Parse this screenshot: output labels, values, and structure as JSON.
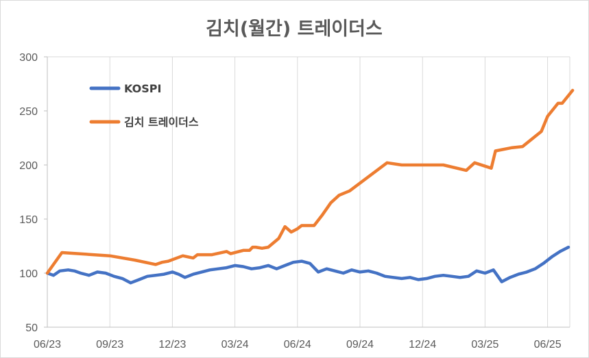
{
  "chart_data": {
    "type": "line",
    "title": "김치(월간) 트레이더스",
    "xlabel": "",
    "ylabel": "",
    "ylim": [
      50,
      300
    ],
    "yticks": [
      50,
      100,
      150,
      200,
      250,
      300
    ],
    "xticks": [
      "06/23",
      "09/23",
      "12/23",
      "03/24",
      "06/24",
      "09/24",
      "12/24",
      "03/25",
      "06/25"
    ],
    "xlim": [
      0,
      25.2
    ],
    "grid": "vertical",
    "legend_position": "top-left",
    "series": [
      {
        "name": "KOSPI",
        "color": "#4472c4",
        "x": [
          0,
          0.3,
          0.6,
          1.0,
          1.3,
          1.6,
          2.0,
          2.4,
          2.8,
          3.2,
          3.6,
          4.0,
          4.4,
          4.8,
          5.2,
          5.6,
          6.0,
          6.3,
          6.6,
          7.0,
          7.4,
          7.8,
          8.2,
          8.6,
          9.0,
          9.4,
          9.8,
          10.2,
          10.6,
          11.0,
          11.4,
          11.8,
          12.2,
          12.6,
          13.0,
          13.4,
          13.8,
          14.2,
          14.6,
          15.0,
          15.4,
          15.8,
          16.2,
          16.6,
          17.0,
          17.4,
          17.8,
          18.2,
          18.6,
          19.0,
          19.4,
          19.8,
          20.2,
          20.6,
          21.0,
          21.4,
          21.8,
          22.2,
          22.6,
          23.0,
          23.4,
          23.8,
          24.2,
          24.6,
          25.0
        ],
        "values": [
          100,
          98,
          102,
          103,
          102,
          100,
          98,
          101,
          100,
          97,
          95,
          91,
          94,
          97,
          98,
          99,
          101,
          99,
          96,
          99,
          101,
          103,
          104,
          105,
          107,
          106,
          104,
          105,
          107,
          104,
          107,
          110,
          111,
          109,
          101,
          104,
          102,
          100,
          103,
          101,
          102,
          100,
          97,
          96,
          95,
          96,
          94,
          95,
          97,
          98,
          97,
          96,
          97,
          102,
          100,
          103,
          92,
          96,
          99,
          101,
          104,
          109,
          115,
          120,
          124
        ]
      },
      {
        "name": "김치 트레이더스",
        "color": "#ed7d31",
        "x": [
          0,
          0.7,
          3.0,
          4.2,
          5.2,
          5.5,
          5.8,
          6.5,
          7.0,
          7.2,
          7.5,
          7.9,
          8.6,
          8.8,
          9.4,
          9.7,
          9.85,
          10.0,
          10.3,
          10.6,
          11.1,
          11.4,
          11.7,
          12.0,
          12.2,
          12.8,
          13.2,
          13.6,
          14.0,
          14.5,
          16.3,
          17.0,
          18.0,
          19.0,
          20.1,
          20.5,
          21.3,
          21.5,
          22.3,
          22.8,
          23.7,
          24.0,
          24.5,
          24.7,
          25.2
        ],
        "values": [
          100,
          119,
          116,
          112,
          108,
          110,
          111,
          116,
          114,
          117,
          117,
          117,
          120,
          118,
          121,
          121,
          124,
          124,
          123,
          124,
          132,
          143,
          138,
          141,
          144,
          144,
          154,
          165,
          172,
          176,
          202,
          200,
          200,
          200,
          195,
          202,
          197,
          213,
          216,
          217,
          231,
          245,
          257,
          257,
          269
        ]
      }
    ]
  }
}
